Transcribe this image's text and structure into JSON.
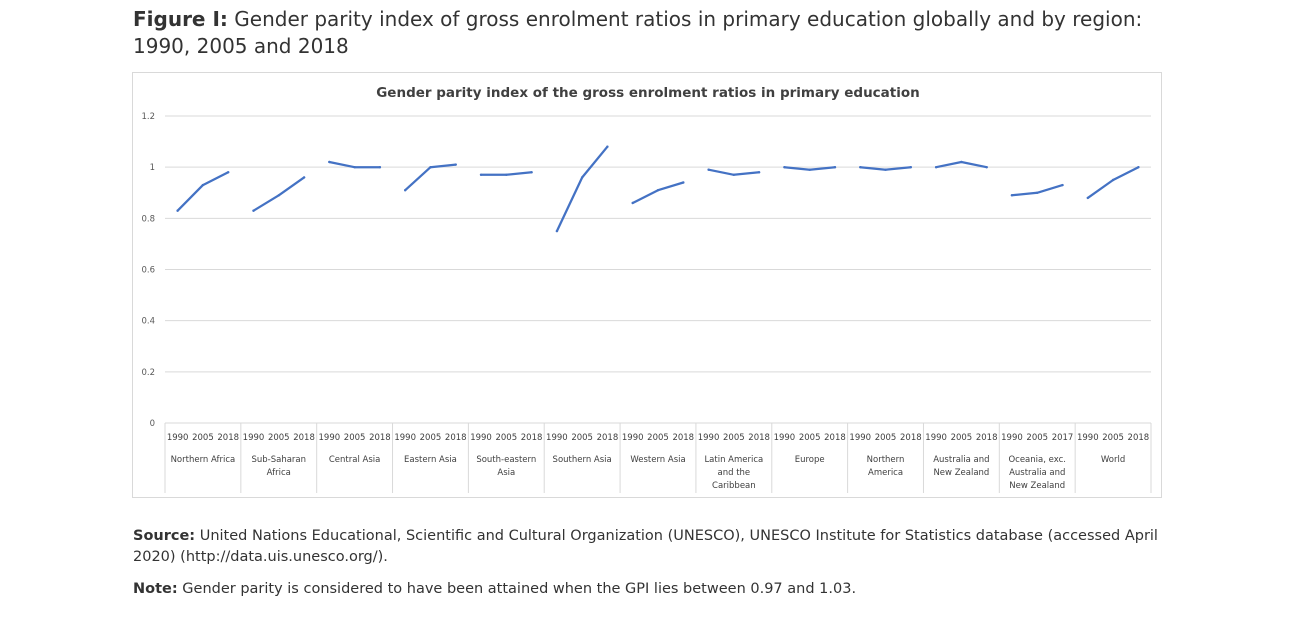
{
  "figure": {
    "label": "Figure I:",
    "title": "Gender parity index of gross enrolment ratios in primary education globally and by region: 1990, 2005 and 2018"
  },
  "footer": {
    "source_label": "Source:",
    "source_text": "United Nations Educational, Scientific and Cultural Organization (UNESCO), UNESCO Institute for Statistics database (accessed April 2020) (http://data.uis.unesco.org/).",
    "note_label": "Note:",
    "note_text": "Gender parity is considered to have been attained when the GPI lies between 0.97 and 1.03."
  },
  "chart_data": {
    "type": "line",
    "title": "Gender parity index of the gross enrolment ratios in primary education",
    "xlabel": "",
    "ylabel": "",
    "ylim": [
      0,
      1.2
    ],
    "yticks": [
      "0",
      "0.2",
      "0.4",
      "0.6",
      "0.8",
      "1",
      "1.2"
    ],
    "grid": true,
    "line_color": "#4472c4",
    "groups": [
      {
        "name": "Northern Africa",
        "lines": [
          "Northern Africa"
        ],
        "years": [
          "1990",
          "2005",
          "2018"
        ],
        "values": [
          0.83,
          0.93,
          0.98
        ]
      },
      {
        "name": "Sub-Saharan Africa",
        "lines": [
          "Sub-Saharan",
          "Africa"
        ],
        "years": [
          "1990",
          "2005",
          "2018"
        ],
        "values": [
          0.83,
          0.89,
          0.96
        ]
      },
      {
        "name": "Central Asia",
        "lines": [
          "Central Asia"
        ],
        "years": [
          "1990",
          "2005",
          "2018"
        ],
        "values": [
          1.02,
          1.0,
          1.0
        ]
      },
      {
        "name": "Eastern Asia",
        "lines": [
          "Eastern Asia"
        ],
        "years": [
          "1990",
          "2005",
          "2018"
        ],
        "values": [
          0.91,
          1.0,
          1.01
        ]
      },
      {
        "name": "South-eastern Asia",
        "lines": [
          "South-eastern",
          "Asia"
        ],
        "years": [
          "1990",
          "2005",
          "2018"
        ],
        "values": [
          0.97,
          0.97,
          0.98
        ]
      },
      {
        "name": "Southern Asia",
        "lines": [
          "Southern Asia"
        ],
        "years": [
          "1990",
          "2005",
          "2018"
        ],
        "values": [
          0.75,
          0.96,
          1.08
        ]
      },
      {
        "name": "Western Asia",
        "lines": [
          "Western Asia"
        ],
        "years": [
          "1990",
          "2005",
          "2018"
        ],
        "values": [
          0.86,
          0.91,
          0.94
        ]
      },
      {
        "name": "Latin America and the Caribbean",
        "lines": [
          "Latin America",
          "and the",
          "Caribbean"
        ],
        "years": [
          "1990",
          "2005",
          "2018"
        ],
        "values": [
          0.99,
          0.97,
          0.98
        ]
      },
      {
        "name": "Europe",
        "lines": [
          "Europe"
        ],
        "years": [
          "1990",
          "2005",
          "2018"
        ],
        "values": [
          1.0,
          0.99,
          1.0
        ]
      },
      {
        "name": "Northern America",
        "lines": [
          "Northern",
          "America"
        ],
        "years": [
          "1990",
          "2005",
          "2018"
        ],
        "values": [
          1.0,
          0.99,
          1.0
        ]
      },
      {
        "name": "Australia and New Zealand",
        "lines": [
          "Australia and",
          "New Zealand"
        ],
        "years": [
          "1990",
          "2005",
          "2018"
        ],
        "values": [
          1.0,
          1.02,
          1.0
        ]
      },
      {
        "name": "Oceania, exc. Australia and New Zealand",
        "lines": [
          "Oceania, exc.",
          "Australia and",
          "New Zealand"
        ],
        "years": [
          "1990",
          "2005",
          "2017"
        ],
        "values": [
          0.89,
          0.9,
          0.93
        ]
      },
      {
        "name": "World",
        "lines": [
          "World"
        ],
        "years": [
          "1990",
          "2005",
          "2018"
        ],
        "values": [
          0.88,
          0.95,
          1.0
        ]
      }
    ]
  }
}
